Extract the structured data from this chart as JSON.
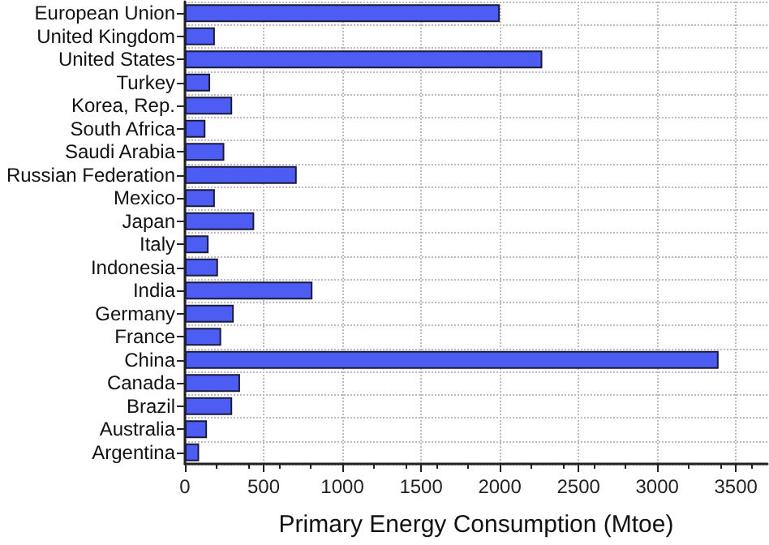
{
  "chart_data": {
    "type": "bar",
    "orientation": "horizontal",
    "xlabel": "Primary Energy Consumption (Mtoe)",
    "categories": [
      "European Union",
      "United Kingdom",
      "United States",
      "Turkey",
      "Korea, Rep.",
      "South Africa",
      "Saudi Arabia",
      "Russian Federation",
      "Mexico",
      "Japan",
      "Italy",
      "Indonesia",
      "India",
      "Germany",
      "France",
      "China",
      "Canada",
      "Brazil",
      "Australia",
      "Argentina"
    ],
    "values": [
      2000,
      190,
      2270,
      160,
      300,
      130,
      250,
      710,
      190,
      440,
      150,
      210,
      810,
      310,
      230,
      3390,
      350,
      300,
      140,
      90
    ],
    "color": "#4d5cf2",
    "xlim": [
      0,
      3700
    ],
    "xticks": [
      0,
      500,
      1000,
      1500,
      2000,
      2500,
      3000,
      3500
    ],
    "grid": true
  }
}
